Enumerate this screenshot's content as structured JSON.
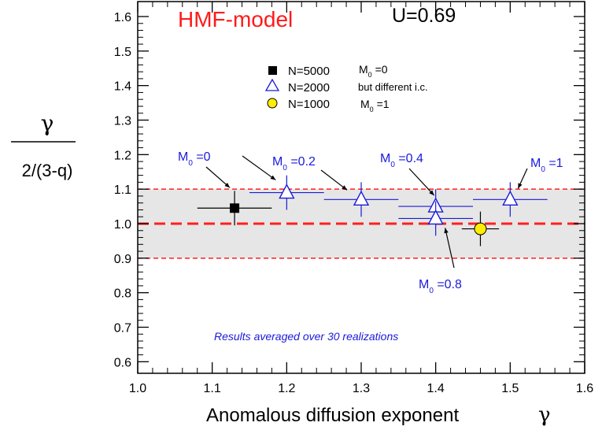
{
  "chart_data": {
    "type": "scatter",
    "title": "HMF-model",
    "param_label": "U=0.69",
    "xlabel_text": "Anomalous diffusion exponent",
    "xlabel_symbol": "γ",
    "ylabel_numerator": "γ",
    "ylabel_denominator": "2/(3-q)",
    "xlim": [
      1.0,
      1.6
    ],
    "ylim": [
      0.55,
      1.65
    ],
    "x_ticks": [
      "1.0",
      "1.1",
      "1.2",
      "1.3",
      "1.4",
      "1.5",
      "1.6"
    ],
    "y_ticks": [
      "0.6",
      "0.7",
      "0.8",
      "0.9",
      "1.0",
      "1.1",
      "1.2",
      "1.3",
      "1.4",
      "1.5",
      "1.6"
    ],
    "band": [
      0.9,
      1.1
    ],
    "reference_line": 1.0,
    "series": [
      {
        "name": "N=5000",
        "legend_extra": "M0 =0",
        "marker": "square",
        "color": "#000000",
        "points": [
          {
            "x": 1.13,
            "y": 1.045,
            "xerr": 0.05,
            "yerr": 0.05
          }
        ]
      },
      {
        "name": "N=2000",
        "legend_extra": "but different i.c.",
        "marker": "triangle-open",
        "color": "#1a1adb",
        "points": [
          {
            "x": 1.2,
            "y": 1.09,
            "xerr": 0.05,
            "yerr": 0.05
          },
          {
            "x": 1.3,
            "y": 1.07,
            "xerr": 0.05,
            "yerr": 0.05
          },
          {
            "x": 1.4,
            "y": 1.05,
            "xerr": 0.05,
            "yerr": 0.05
          },
          {
            "x": 1.4,
            "y": 1.015,
            "xerr": 0.05,
            "yerr": 0.05
          },
          {
            "x": 1.5,
            "y": 1.07,
            "xerr": 0.05,
            "yerr": 0.05
          }
        ]
      },
      {
        "name": "N=1000",
        "legend_extra": "M0 =1",
        "marker": "circle-filled",
        "color": "#ffee00",
        "points": [
          {
            "x": 1.46,
            "y": 0.985,
            "xerr": 0.025,
            "yerr": 0.05
          }
        ]
      }
    ],
    "annotations": [
      {
        "text": "M0 =0",
        "points_to": [
          1.13,
          1.045
        ]
      },
      {
        "text": "M0 =0.2",
        "points_to": [
          1.2,
          1.09
        ]
      },
      {
        "text": "M0 =0.4",
        "points_to": [
          1.4,
          1.05
        ]
      },
      {
        "text": "M0 =1",
        "points_to": [
          1.5,
          1.07
        ]
      },
      {
        "text": "M0 =0.8",
        "points_to": [
          1.4,
          1.015
        ]
      }
    ],
    "note": "Results averaged over 30 realizations",
    "colors": {
      "title": "#ff1a1a",
      "band": "#e6e6e6",
      "dash": "#ff2020",
      "annotation": "#1a1adb"
    }
  }
}
